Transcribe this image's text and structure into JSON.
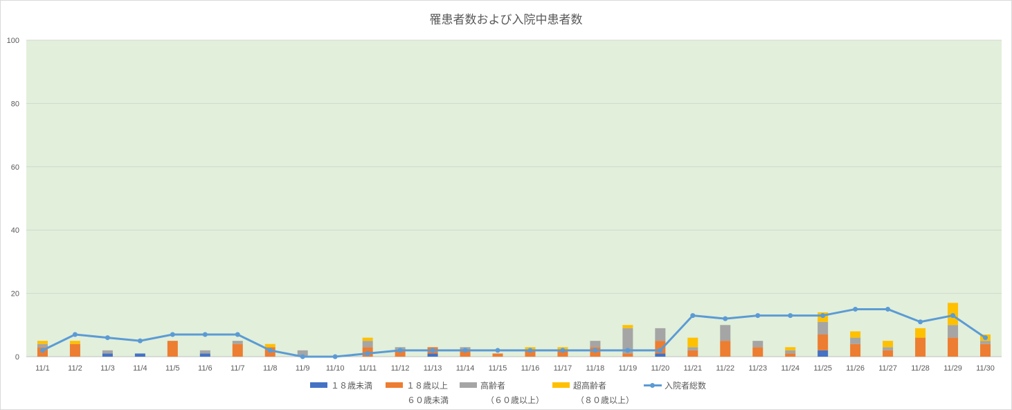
{
  "chart_data": {
    "type": "bar",
    "title": "罹患者数および入院中患者数",
    "ylim": [
      0,
      100
    ],
    "yticks": [
      0,
      20,
      40,
      60,
      80,
      100
    ],
    "grid": true,
    "background_color": "#e2efda",
    "legend_position": "bottom",
    "categories": [
      "11/1",
      "11/2",
      "11/3",
      "11/4",
      "11/5",
      "11/6",
      "11/7",
      "11/8",
      "11/9",
      "11/10",
      "11/11",
      "11/12",
      "11/13",
      "11/14",
      "11/15",
      "11/16",
      "11/17",
      "11/18",
      "11/19",
      "11/20",
      "11/21",
      "11/22",
      "11/23",
      "11/24",
      "11/25",
      "11/26",
      "11/27",
      "11/28",
      "11/29",
      "11/30"
    ],
    "series": [
      {
        "name": "１８歳未満",
        "type": "bar",
        "color": "#4472c4",
        "values": [
          0,
          0,
          1,
          1,
          0,
          1,
          0,
          0,
          0,
          0,
          0,
          0,
          1,
          0,
          0,
          0,
          0,
          0,
          0,
          1,
          0,
          0,
          0,
          0,
          2,
          0,
          0,
          0,
          0,
          0
        ]
      },
      {
        "name": "１８歳以上",
        "name2": "６０歳未満",
        "type": "bar",
        "color": "#ed7d31",
        "values": [
          3,
          4,
          0,
          0,
          5,
          0,
          4,
          3,
          0,
          0,
          3,
          2,
          2,
          2,
          1,
          2,
          2,
          3,
          1,
          4,
          2,
          5,
          3,
          1,
          5,
          4,
          2,
          6,
          6,
          4
        ]
      },
      {
        "name": "高齢者",
        "name2": "（６０歳以上）",
        "type": "bar",
        "color": "#a5a5a5",
        "values": [
          1,
          0,
          1,
          0,
          0,
          1,
          1,
          0,
          2,
          0,
          2,
          1,
          0,
          1,
          0,
          0,
          0,
          2,
          8,
          4,
          1,
          5,
          2,
          1,
          4,
          2,
          1,
          0,
          4,
          1
        ]
      },
      {
        "name": "超高齢者",
        "name2": "（８０歳以上）",
        "type": "bar",
        "color": "#ffc000",
        "values": [
          1,
          1,
          0,
          0,
          0,
          0,
          0,
          1,
          0,
          0,
          1,
          0,
          0,
          0,
          0,
          1,
          1,
          0,
          1,
          0,
          3,
          0,
          0,
          1,
          3,
          2,
          2,
          3,
          7,
          2
        ]
      },
      {
        "name": "入院者総数",
        "type": "line",
        "color": "#5b9bd5",
        "values": [
          2,
          7,
          6,
          5,
          7,
          7,
          7,
          2,
          0,
          0,
          1,
          2,
          2,
          2,
          2,
          2,
          2,
          2,
          2,
          2,
          13,
          12,
          13,
          13,
          13,
          15,
          15,
          11,
          13,
          6
        ]
      }
    ]
  }
}
